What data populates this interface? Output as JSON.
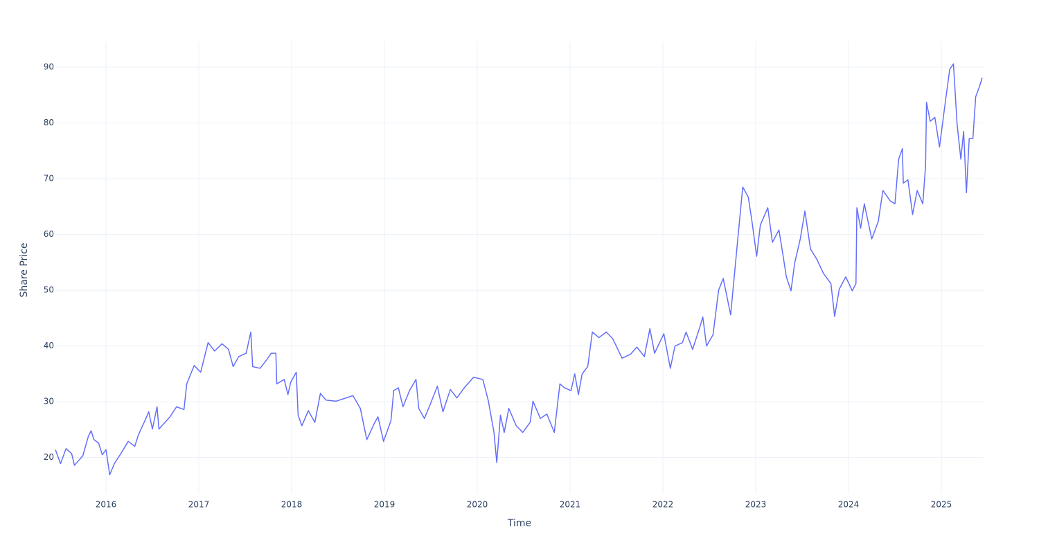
{
  "chart_data": {
    "type": "line",
    "x_label": "Time",
    "y_label": "Share Price",
    "xlim": [
      2015.455,
      2025.455
    ],
    "ylim": [
      13.5,
      94.6
    ],
    "xticks": [
      2016,
      2017,
      2018,
      2019,
      2020,
      2021,
      2022,
      2023,
      2024,
      2025
    ],
    "yticks": [
      20,
      30,
      40,
      50,
      60,
      70,
      80,
      90
    ],
    "grid": true,
    "x": [
      2015.455,
      2015.51,
      2015.57,
      2015.63,
      2015.66,
      2015.75,
      2015.81,
      2015.84,
      2015.87,
      2015.92,
      2015.96,
      2016.0,
      2016.04,
      2016.09,
      2016.16,
      2016.24,
      2016.31,
      2016.35,
      2016.43,
      2016.46,
      2016.5,
      2016.55,
      2016.57,
      2016.69,
      2016.76,
      2016.84,
      2016.87,
      2016.95,
      2017.02,
      2017.1,
      2017.17,
      2017.25,
      2017.32,
      2017.37,
      2017.43,
      2017.51,
      2017.56,
      2017.58,
      2017.66,
      2017.73,
      2017.78,
      2017.83,
      2017.84,
      2017.92,
      2017.96,
      2017.99,
      2018.05,
      2018.07,
      2018.11,
      2018.18,
      2018.25,
      2018.31,
      2018.37,
      2018.48,
      2018.59,
      2018.66,
      2018.74,
      2018.81,
      2018.89,
      2018.93,
      2018.99,
      2019.07,
      2019.1,
      2019.15,
      2019.2,
      2019.27,
      2019.34,
      2019.37,
      2019.43,
      2019.49,
      2019.57,
      2019.63,
      2019.71,
      2019.78,
      2019.86,
      2019.96,
      2020.06,
      2020.12,
      2020.18,
      2020.21,
      2020.25,
      2020.29,
      2020.34,
      2020.42,
      2020.49,
      2020.57,
      2020.6,
      2020.68,
      2020.75,
      2020.83,
      2020.89,
      2020.94,
      2021.01,
      2021.05,
      2021.09,
      2021.13,
      2021.19,
      2021.24,
      2021.31,
      2021.39,
      2021.46,
      2021.56,
      2021.65,
      2021.72,
      2021.8,
      2021.86,
      2021.91,
      2022.01,
      2022.08,
      2022.13,
      2022.21,
      2022.25,
      2022.32,
      2022.4,
      2022.43,
      2022.47,
      2022.54,
      2022.6,
      2022.65,
      2022.73,
      2022.8,
      2022.86,
      2022.92,
      2022.96,
      2023.01,
      2023.05,
      2023.13,
      2023.18,
      2023.25,
      2023.29,
      2023.33,
      2023.38,
      2023.42,
      2023.48,
      2023.53,
      2023.59,
      2023.66,
      2023.73,
      2023.81,
      2023.85,
      2023.9,
      2023.97,
      2024.04,
      2024.08,
      2024.09,
      2024.13,
      2024.17,
      2024.25,
      2024.32,
      2024.37,
      2024.45,
      2024.5,
      2024.54,
      2024.58,
      2024.59,
      2024.64,
      2024.69,
      2024.74,
      2024.8,
      2024.83,
      2024.84,
      2024.88,
      2024.93,
      2024.98,
      2025.04,
      2025.09,
      2025.13,
      2025.17,
      2025.21,
      2025.24,
      2025.27,
      2025.3,
      2025.34,
      2025.37,
      2025.41,
      2025.44
    ],
    "series": [
      {
        "name": "Share Price",
        "color": "#636efa",
        "values": [
          21.4,
          18.9,
          21.6,
          20.7,
          18.6,
          20.3,
          23.8,
          24.8,
          23.2,
          22.6,
          20.5,
          21.4,
          16.9,
          18.9,
          20.7,
          22.9,
          22.0,
          24.1,
          27.0,
          28.2,
          25.1,
          29.1,
          25.1,
          27.3,
          29.1,
          28.6,
          33.2,
          36.5,
          35.3,
          40.6,
          39.1,
          40.4,
          39.4,
          36.3,
          38.1,
          38.7,
          42.5,
          36.3,
          36.0,
          37.5,
          38.7,
          38.7,
          33.2,
          34.0,
          31.3,
          33.5,
          35.3,
          27.6,
          25.7,
          28.4,
          26.3,
          31.5,
          30.3,
          30.1,
          30.7,
          31.1,
          28.8,
          23.2,
          26.1,
          27.3,
          22.9,
          26.6,
          32.0,
          32.5,
          29.1,
          32.0,
          34.0,
          28.8,
          27.0,
          29.4,
          32.8,
          28.2,
          32.2,
          30.7,
          32.5,
          34.4,
          34.0,
          30.1,
          24.5,
          19.1,
          27.6,
          24.5,
          28.8,
          25.7,
          24.5,
          26.3,
          30.1,
          27.0,
          27.8,
          24.5,
          33.2,
          32.5,
          32.0,
          35.0,
          31.3,
          35.0,
          36.3,
          42.5,
          41.5,
          42.5,
          41.3,
          37.8,
          38.5,
          39.8,
          38.1,
          43.1,
          38.7,
          42.2,
          36.0,
          40.0,
          40.6,
          42.5,
          39.4,
          43.5,
          45.2,
          40.0,
          42.0,
          50.0,
          52.1,
          45.6,
          58.0,
          68.5,
          66.7,
          62.3,
          56.1,
          61.7,
          64.8,
          58.6,
          60.8,
          56.7,
          52.4,
          49.9,
          54.9,
          59.2,
          64.2,
          57.4,
          55.5,
          53.0,
          51.2,
          45.3,
          50.2,
          52.4,
          49.9,
          51.2,
          64.8,
          61.1,
          65.5,
          59.2,
          62.3,
          67.9,
          66.0,
          65.5,
          73.5,
          75.4,
          69.2,
          69.8,
          63.6,
          67.9,
          65.5,
          72.3,
          83.7,
          80.3,
          81.0,
          75.7,
          83.4,
          89.6,
          90.6,
          79.7,
          73.5,
          78.5,
          67.5,
          77.2,
          77.2,
          84.7,
          86.5,
          88.1
        ]
      }
    ]
  }
}
